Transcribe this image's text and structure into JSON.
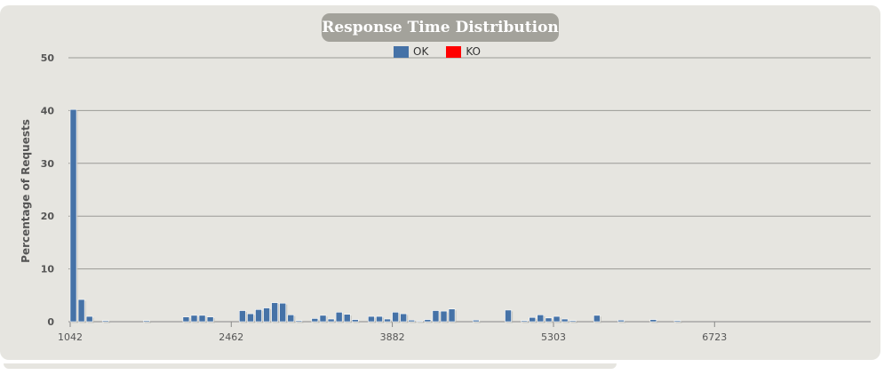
{
  "chart_data": {
    "type": "bar",
    "title": "Response Time Distribution",
    "xlabel": "",
    "ylabel": "Percentage of Requests",
    "ylim": [
      0,
      50
    ],
    "xlim": [
      1042,
      7768
    ],
    "y_ticks": [
      0,
      10,
      20,
      30,
      40,
      50
    ],
    "x_ticks": [
      1042,
      2462,
      3882,
      5303,
      6723
    ],
    "grid": true,
    "legend_position": "top-center",
    "bin_width": 71,
    "series": [
      {
        "name": "OK",
        "color": "#4572a7",
        "points": [
          [
            1042,
            40.2
          ],
          [
            1113,
            4.2
          ],
          [
            1184,
            1.0
          ],
          [
            1326,
            0.2
          ],
          [
            1687,
            0.2
          ],
          [
            2036,
            0.9
          ],
          [
            2107,
            1.2
          ],
          [
            2178,
            1.2
          ],
          [
            2249,
            0.9
          ],
          [
            2533,
            2.1
          ],
          [
            2604,
            1.5
          ],
          [
            2675,
            2.3
          ],
          [
            2746,
            2.6
          ],
          [
            2817,
            3.6
          ],
          [
            2888,
            3.5
          ],
          [
            2959,
            1.3
          ],
          [
            3030,
            0.2
          ],
          [
            3171,
            0.6
          ],
          [
            3243,
            1.2
          ],
          [
            3314,
            0.5
          ],
          [
            3385,
            1.8
          ],
          [
            3456,
            1.4
          ],
          [
            3527,
            0.4
          ],
          [
            3669,
            1.0
          ],
          [
            3740,
            1.0
          ],
          [
            3811,
            0.5
          ],
          [
            3882,
            1.8
          ],
          [
            3953,
            1.5
          ],
          [
            4024,
            0.3
          ],
          [
            4095,
            0.1
          ],
          [
            4166,
            0.4
          ],
          [
            4237,
            2.1
          ],
          [
            4308,
            2.0
          ],
          [
            4379,
            2.4
          ],
          [
            4592,
            0.3
          ],
          [
            4876,
            2.2
          ],
          [
            5018,
            0.2
          ],
          [
            5089,
            0.8
          ],
          [
            5160,
            1.3
          ],
          [
            5232,
            0.7
          ],
          [
            5303,
            1.0
          ],
          [
            5374,
            0.5
          ],
          [
            5445,
            0.2
          ],
          [
            5658,
            1.2
          ],
          [
            5871,
            0.3
          ],
          [
            6155,
            0.4
          ],
          [
            6368,
            0.2
          ]
        ]
      },
      {
        "name": "KO",
        "color": "#ff0000",
        "points": []
      }
    ]
  }
}
